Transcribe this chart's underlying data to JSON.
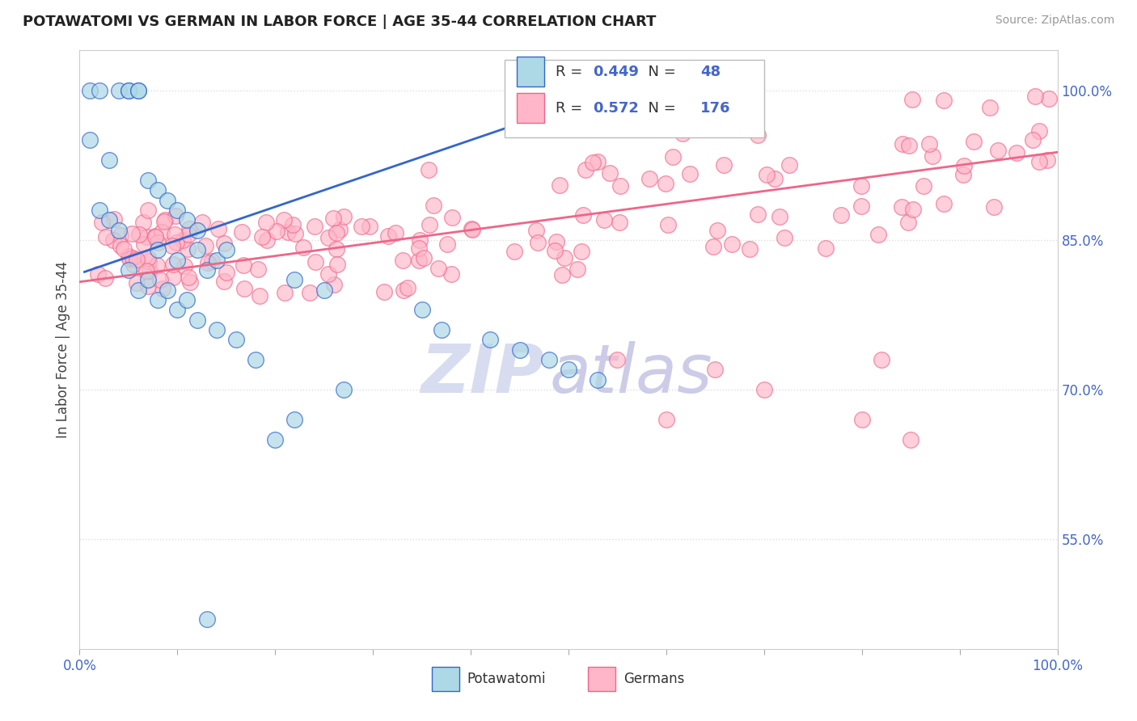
{
  "title": "POTAWATOMI VS GERMAN IN LABOR FORCE | AGE 35-44 CORRELATION CHART",
  "source_text": "Source: ZipAtlas.com",
  "ylabel": "In Labor Force | Age 35-44",
  "R_potawatomi": 0.449,
  "N_potawatomi": 48,
  "R_german": 0.572,
  "N_german": 176,
  "xlim": [
    0.0,
    1.0
  ],
  "ylim": [
    0.44,
    1.04
  ],
  "ytick_positions": [
    0.55,
    0.7,
    0.85,
    1.0
  ],
  "ytick_labels": [
    "55.0%",
    "70.0%",
    "85.0%",
    "100.0%"
  ],
  "color_potawatomi": "#ADD8E6",
  "color_german": "#FFB6C8",
  "line_color_potawatomi": "#3366CC",
  "line_color_german": "#EE6688",
  "tick_color": "#4466CC",
  "background_color": "#FFFFFF",
  "grid_color": "#DDDDDD",
  "watermark_zip_color": "#D8DCF0",
  "watermark_atlas_color": "#CCCCE8",
  "legend_label_potawatomi": "Potawatomi",
  "legend_label_german": "Germans",
  "blue_line_x": [
    0.005,
    0.555
  ],
  "blue_line_y": [
    0.818,
    1.002
  ],
  "pink_line_x": [
    0.0,
    1.0
  ],
  "pink_line_y": [
    0.808,
    0.938
  ]
}
